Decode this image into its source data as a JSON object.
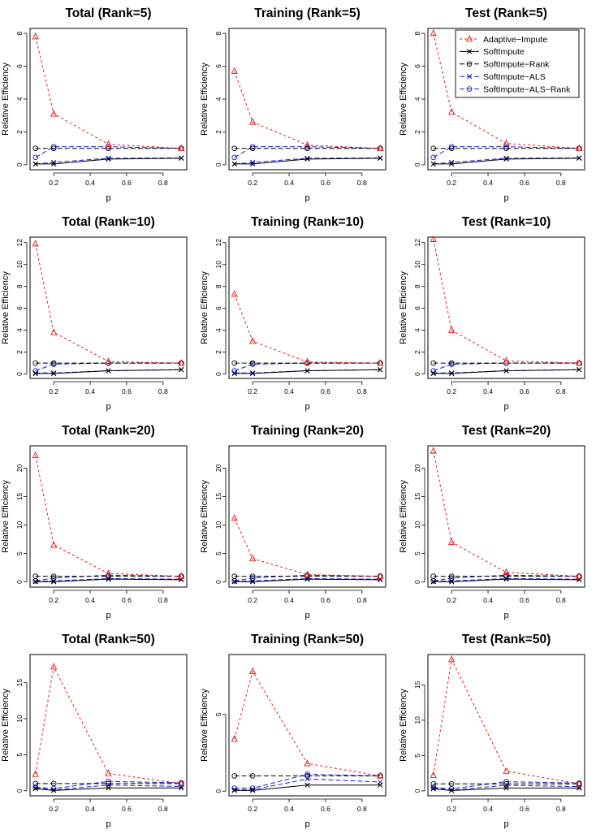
{
  "figure": {
    "x_label": "p",
    "y_label": "Relative Efficiency",
    "legend_location": "top-right of the top-right panel",
    "legend": [
      {
        "label": "Adaptive−Impute",
        "color": "#e41a1c",
        "marker": "triangle",
        "dash": "short"
      },
      {
        "label": "SoftImpute",
        "color": "#000000",
        "marker": "cross",
        "dash": "solid"
      },
      {
        "label": "SoftImpute−Rank",
        "color": "#000000",
        "marker": "circle",
        "dash": "long"
      },
      {
        "label": "SoftImpute−ALS",
        "color": "#1f1fd6",
        "marker": "cross",
        "dash": "long"
      },
      {
        "label": "SoftImpute−ALS−Rank",
        "color": "#1f1fd6",
        "marker": "circle",
        "dash": "long"
      }
    ]
  },
  "chart_data": [
    {
      "type": "line",
      "title": "Total (Rank=5)",
      "xlabel": "p",
      "ylabel": "Relative Efficiency",
      "x": [
        0.1,
        0.2,
        0.5,
        0.9
      ],
      "xlim": [
        0.07,
        0.93
      ],
      "ylim": [
        -0.3,
        8.3
      ],
      "xticks": [
        0.2,
        0.4,
        0.6,
        0.8
      ],
      "yticks": [
        0,
        2,
        4,
        6,
        8
      ],
      "series": [
        {
          "name": "Adaptive−Impute",
          "values": [
            7.8,
            3.1,
            1.25,
            1.0
          ]
        },
        {
          "name": "SoftImpute",
          "values": [
            0.05,
            0.05,
            0.35,
            0.4
          ]
        },
        {
          "name": "SoftImpute−Rank",
          "values": [
            1.0,
            1.0,
            1.0,
            1.0
          ]
        },
        {
          "name": "SoftImpute−ALS",
          "values": [
            0.05,
            0.15,
            0.4,
            0.42
          ]
        },
        {
          "name": "SoftImpute−ALS−Rank",
          "values": [
            0.45,
            1.1,
            1.1,
            1.0
          ]
        }
      ]
    },
    {
      "type": "line",
      "title": "Training (Rank=5)",
      "xlabel": "p",
      "ylabel": "Relative Efficiency",
      "x": [
        0.1,
        0.2,
        0.5,
        0.9
      ],
      "xlim": [
        0.07,
        0.93
      ],
      "ylim": [
        -0.3,
        8.3
      ],
      "xticks": [
        0.2,
        0.4,
        0.6,
        0.8
      ],
      "yticks": [
        0,
        2,
        4,
        6,
        8
      ],
      "series": [
        {
          "name": "Adaptive−Impute",
          "values": [
            5.7,
            2.6,
            1.2,
            1.0
          ]
        },
        {
          "name": "SoftImpute",
          "values": [
            0.05,
            0.05,
            0.35,
            0.4
          ]
        },
        {
          "name": "SoftImpute−Rank",
          "values": [
            1.0,
            1.0,
            1.0,
            1.0
          ]
        },
        {
          "name": "SoftImpute−ALS",
          "values": [
            0.05,
            0.15,
            0.4,
            0.42
          ]
        },
        {
          "name": "SoftImpute−ALS−Rank",
          "values": [
            0.45,
            1.1,
            1.1,
            1.0
          ]
        }
      ]
    },
    {
      "type": "line",
      "title": "Test (Rank=5)",
      "xlabel": "p",
      "ylabel": "Relative Efficiency",
      "x": [
        0.1,
        0.2,
        0.5,
        0.9
      ],
      "xlim": [
        0.07,
        0.93
      ],
      "ylim": [
        -0.3,
        8.3
      ],
      "xticks": [
        0.2,
        0.4,
        0.6,
        0.8
      ],
      "yticks": [
        0,
        2,
        4,
        6,
        8
      ],
      "series": [
        {
          "name": "Adaptive−Impute",
          "values": [
            8.0,
            3.2,
            1.3,
            1.0
          ]
        },
        {
          "name": "SoftImpute",
          "values": [
            0.05,
            0.05,
            0.35,
            0.4
          ]
        },
        {
          "name": "SoftImpute−Rank",
          "values": [
            1.0,
            1.0,
            1.0,
            1.0
          ]
        },
        {
          "name": "SoftImpute−ALS",
          "values": [
            0.05,
            0.15,
            0.4,
            0.42
          ]
        },
        {
          "name": "SoftImpute−ALS−Rank",
          "values": [
            0.45,
            1.1,
            1.1,
            1.0
          ]
        }
      ]
    },
    {
      "type": "line",
      "title": "Total (Rank=10)",
      "xlabel": "p",
      "ylabel": "Relative Efficiency",
      "x": [
        0.1,
        0.2,
        0.5,
        0.9
      ],
      "xlim": [
        0.07,
        0.93
      ],
      "ylim": [
        -0.4,
        12.5
      ],
      "xticks": [
        0.2,
        0.4,
        0.6,
        0.8
      ],
      "yticks": [
        0,
        2,
        4,
        6,
        8,
        10,
        12
      ],
      "series": [
        {
          "name": "Adaptive−Impute",
          "values": [
            11.9,
            3.8,
            1.15,
            1.0
          ]
        },
        {
          "name": "SoftImpute",
          "values": [
            0.05,
            0.05,
            0.3,
            0.4
          ]
        },
        {
          "name": "SoftImpute−Rank",
          "values": [
            1.0,
            1.0,
            1.0,
            1.0
          ]
        },
        {
          "name": "SoftImpute−ALS",
          "values": [
            0.1,
            0.1,
            0.3,
            0.4
          ]
        },
        {
          "name": "SoftImpute−ALS−Rank",
          "values": [
            0.3,
            0.9,
            1.0,
            1.0
          ]
        }
      ]
    },
    {
      "type": "line",
      "title": "Training (Rank=10)",
      "xlabel": "p",
      "ylabel": "Relative Efficiency",
      "x": [
        0.1,
        0.2,
        0.5,
        0.9
      ],
      "xlim": [
        0.07,
        0.93
      ],
      "ylim": [
        -0.4,
        12.5
      ],
      "xticks": [
        0.2,
        0.4,
        0.6,
        0.8
      ],
      "yticks": [
        0,
        2,
        4,
        6,
        8,
        10,
        12
      ],
      "series": [
        {
          "name": "Adaptive−Impute",
          "values": [
            7.3,
            3.0,
            1.1,
            1.0
          ]
        },
        {
          "name": "SoftImpute",
          "values": [
            0.05,
            0.05,
            0.3,
            0.4
          ]
        },
        {
          "name": "SoftImpute−Rank",
          "values": [
            1.0,
            1.0,
            1.0,
            1.0
          ]
        },
        {
          "name": "SoftImpute−ALS",
          "values": [
            0.1,
            0.1,
            0.3,
            0.4
          ]
        },
        {
          "name": "SoftImpute−ALS−Rank",
          "values": [
            0.3,
            0.9,
            1.0,
            1.0
          ]
        }
      ]
    },
    {
      "type": "line",
      "title": "Test (Rank=10)",
      "xlabel": "p",
      "ylabel": "Relative Efficiency",
      "x": [
        0.1,
        0.2,
        0.5,
        0.9
      ],
      "xlim": [
        0.07,
        0.93
      ],
      "ylim": [
        -0.4,
        12.5
      ],
      "xticks": [
        0.2,
        0.4,
        0.6,
        0.8
      ],
      "yticks": [
        0,
        2,
        4,
        6,
        8,
        10,
        12
      ],
      "series": [
        {
          "name": "Adaptive−Impute",
          "values": [
            12.3,
            4.0,
            1.2,
            1.0
          ]
        },
        {
          "name": "SoftImpute",
          "values": [
            0.05,
            0.05,
            0.3,
            0.4
          ]
        },
        {
          "name": "SoftImpute−Rank",
          "values": [
            1.0,
            1.0,
            1.0,
            1.0
          ]
        },
        {
          "name": "SoftImpute−ALS",
          "values": [
            0.1,
            0.1,
            0.3,
            0.4
          ]
        },
        {
          "name": "SoftImpute−ALS−Rank",
          "values": [
            0.3,
            0.9,
            1.0,
            1.0
          ]
        }
      ]
    },
    {
      "type": "line",
      "title": "Total (Rank=20)",
      "xlabel": "p",
      "ylabel": "Relative Efficiency",
      "x": [
        0.1,
        0.2,
        0.5,
        0.9
      ],
      "xlim": [
        0.07,
        0.93
      ],
      "ylim": [
        -0.9,
        23.9
      ],
      "xticks": [
        0.2,
        0.4,
        0.6,
        0.8
      ],
      "yticks": [
        0,
        5,
        10,
        15,
        20
      ],
      "series": [
        {
          "name": "Adaptive−Impute",
          "values": [
            22.2,
            6.5,
            1.5,
            1.0
          ]
        },
        {
          "name": "SoftImpute",
          "values": [
            0.05,
            0.05,
            0.5,
            0.4
          ]
        },
        {
          "name": "SoftImpute−Rank",
          "values": [
            1.0,
            1.0,
            1.0,
            1.0
          ]
        },
        {
          "name": "SoftImpute−ALS",
          "values": [
            0.1,
            0.2,
            0.6,
            0.5
          ]
        },
        {
          "name": "SoftImpute−ALS−Rank",
          "values": [
            0.2,
            0.7,
            1.2,
            1.0
          ]
        }
      ]
    },
    {
      "type": "line",
      "title": "Training (Rank=20)",
      "xlabel": "p",
      "ylabel": "Relative Efficiency",
      "x": [
        0.1,
        0.2,
        0.5,
        0.9
      ],
      "xlim": [
        0.07,
        0.93
      ],
      "ylim": [
        -0.9,
        23.9
      ],
      "xticks": [
        0.2,
        0.4,
        0.6,
        0.8
      ],
      "yticks": [
        0,
        5,
        10,
        15,
        20
      ],
      "series": [
        {
          "name": "Adaptive−Impute",
          "values": [
            11.2,
            4.1,
            1.3,
            1.0
          ]
        },
        {
          "name": "SoftImpute",
          "values": [
            0.05,
            0.05,
            0.5,
            0.4
          ]
        },
        {
          "name": "SoftImpute−Rank",
          "values": [
            1.0,
            1.0,
            1.0,
            1.0
          ]
        },
        {
          "name": "SoftImpute−ALS",
          "values": [
            0.1,
            0.2,
            0.6,
            0.5
          ]
        },
        {
          "name": "SoftImpute−ALS−Rank",
          "values": [
            0.2,
            0.7,
            1.2,
            1.0
          ]
        }
      ]
    },
    {
      "type": "line",
      "title": "Test (Rank=20)",
      "xlabel": "p",
      "ylabel": "Relative Efficiency",
      "x": [
        0.1,
        0.2,
        0.5,
        0.9
      ],
      "xlim": [
        0.07,
        0.93
      ],
      "ylim": [
        -0.9,
        23.9
      ],
      "xticks": [
        0.2,
        0.4,
        0.6,
        0.8
      ],
      "yticks": [
        0,
        5,
        10,
        15,
        20
      ],
      "series": [
        {
          "name": "Adaptive−Impute",
          "values": [
            23.0,
            7.0,
            1.7,
            1.0
          ]
        },
        {
          "name": "SoftImpute",
          "values": [
            0.05,
            0.05,
            0.5,
            0.4
          ]
        },
        {
          "name": "SoftImpute−Rank",
          "values": [
            1.0,
            1.0,
            1.0,
            1.0
          ]
        },
        {
          "name": "SoftImpute−ALS",
          "values": [
            0.1,
            0.2,
            0.6,
            0.5
          ]
        },
        {
          "name": "SoftImpute−ALS−Rank",
          "values": [
            0.2,
            0.7,
            1.2,
            1.0
          ]
        }
      ]
    },
    {
      "type": "line",
      "title": "Total (Rank=50)",
      "xlabel": "p",
      "ylabel": "Relative Efficiency",
      "x": [
        0.1,
        0.2,
        0.5,
        0.9
      ],
      "xlim": [
        0.07,
        0.93
      ],
      "ylim": [
        -0.7,
        18.9
      ],
      "xticks": [
        0.2,
        0.4,
        0.6,
        0.8
      ],
      "yticks": [
        0,
        5,
        10,
        15
      ],
      "series": [
        {
          "name": "Adaptive−Impute",
          "values": [
            2.3,
            17.2,
            2.4,
            1.0
          ]
        },
        {
          "name": "SoftImpute",
          "values": [
            0.3,
            0.05,
            0.4,
            0.4
          ]
        },
        {
          "name": "SoftImpute−Rank",
          "values": [
            1.0,
            1.0,
            1.0,
            1.0
          ]
        },
        {
          "name": "SoftImpute−ALS",
          "values": [
            0.4,
            0.1,
            0.8,
            0.6
          ]
        },
        {
          "name": "SoftImpute−ALS−Rank",
          "values": [
            0.5,
            0.3,
            1.3,
            1.1
          ]
        }
      ]
    },
    {
      "type": "line",
      "title": "Training (Rank=50)",
      "xlabel": "p",
      "ylabel": "Relative Efficiency",
      "x": [
        0.1,
        0.2,
        0.5,
        0.9
      ],
      "xlim": [
        0.07,
        0.93
      ],
      "ylim": [
        -0.3,
        8.9
      ],
      "xticks": [
        0.2,
        0.4,
        0.6,
        0.8
      ],
      "yticks": [
        0,
        5
      ],
      "series": [
        {
          "name": "Adaptive−Impute",
          "values": [
            3.4,
            7.8,
            1.8,
            1.0
          ]
        },
        {
          "name": "SoftImpute",
          "values": [
            0.05,
            0.05,
            0.4,
            0.4
          ]
        },
        {
          "name": "SoftImpute−Rank",
          "values": [
            1.0,
            1.0,
            1.0,
            1.0
          ]
        },
        {
          "name": "SoftImpute−ALS",
          "values": [
            0.1,
            0.1,
            0.8,
            0.6
          ]
        },
        {
          "name": "SoftImpute−ALS−Rank",
          "values": [
            0.2,
            0.2,
            1.1,
            1.0
          ]
        }
      ]
    },
    {
      "type": "line",
      "title": "Test (Rank=50)",
      "xlabel": "p",
      "ylabel": "Relative Efficiency",
      "x": [
        0.1,
        0.2,
        0.5,
        0.9
      ],
      "xlim": [
        0.07,
        0.93
      ],
      "ylim": [
        -0.7,
        19.3
      ],
      "xticks": [
        0.2,
        0.4,
        0.6,
        0.8
      ],
      "yticks": [
        0,
        5,
        10,
        15
      ],
      "series": [
        {
          "name": "Adaptive−Impute",
          "values": [
            2.2,
            18.6,
            2.8,
            1.0
          ]
        },
        {
          "name": "SoftImpute",
          "values": [
            0.3,
            0.05,
            0.4,
            0.4
          ]
        },
        {
          "name": "SoftImpute−Rank",
          "values": [
            1.0,
            1.0,
            1.0,
            1.0
          ]
        },
        {
          "name": "SoftImpute−ALS",
          "values": [
            0.4,
            0.1,
            0.8,
            0.6
          ]
        },
        {
          "name": "SoftImpute−ALS−Rank",
          "values": [
            0.5,
            0.3,
            1.3,
            1.1
          ]
        }
      ]
    }
  ]
}
